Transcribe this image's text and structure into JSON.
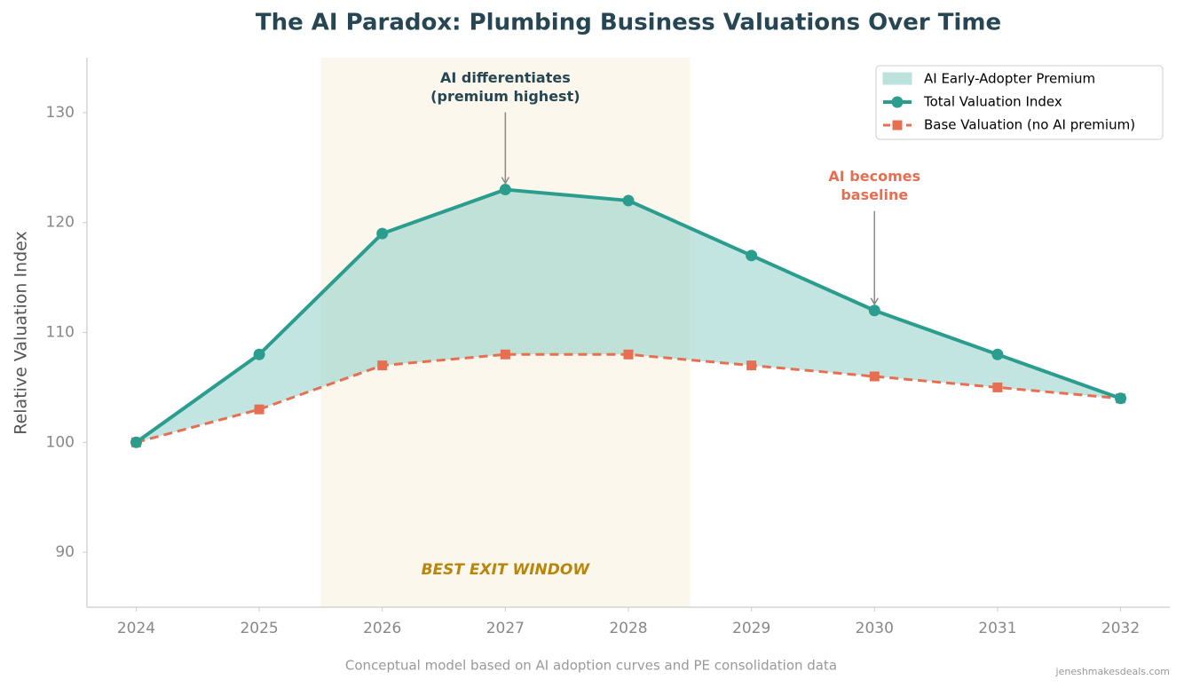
{
  "chart_data": {
    "type": "line",
    "title": "The AI Paradox: Plumbing Business Valuations Over Time",
    "ylabel": "Relative Valuation Index",
    "footnote": "Conceptual model based on AI adoption curves and PE consolidation data",
    "watermark": "jeneshmakesdeals.com",
    "x": [
      2024,
      2025,
      2026,
      2027,
      2028,
      2029,
      2030,
      2031,
      2032
    ],
    "series": [
      {
        "name": "Total Valuation Index",
        "color": "#2a9d8f",
        "marker": "circle",
        "dash": false,
        "values": [
          100,
          108,
          119,
          123,
          122,
          117,
          112,
          108,
          104
        ]
      },
      {
        "name": "Base Valuation (no AI premium)",
        "color": "#e76f51",
        "marker": "square",
        "dash": true,
        "values": [
          100,
          103,
          107,
          108,
          108,
          107,
          106,
          105,
          104
        ]
      }
    ],
    "fill_between": {
      "name": "AI Early-Adopter Premium",
      "color": "#8fd0c8"
    },
    "highlight": {
      "from": 2025.5,
      "to": 2028.5,
      "label": "BEST EXIT WINDOW",
      "color": "#f7efd9",
      "label_color": "#b8860b"
    },
    "annotations": [
      {
        "lines": [
          "AI differentiates",
          "(premium highest)"
        ],
        "x": 2027,
        "y": 123,
        "color": "#264653"
      },
      {
        "lines": [
          "AI becomes",
          "baseline"
        ],
        "x": 2030,
        "y": 112,
        "color": "#e76f51"
      }
    ],
    "xlim": [
      2023.6,
      2032.4
    ],
    "xticks": [
      2024,
      2025,
      2026,
      2027,
      2028,
      2029,
      2030,
      2031,
      2032
    ],
    "ylim": [
      85,
      135
    ],
    "yticks": [
      90,
      100,
      110,
      120,
      130
    ],
    "grid": false,
    "legend": "upper right"
  }
}
